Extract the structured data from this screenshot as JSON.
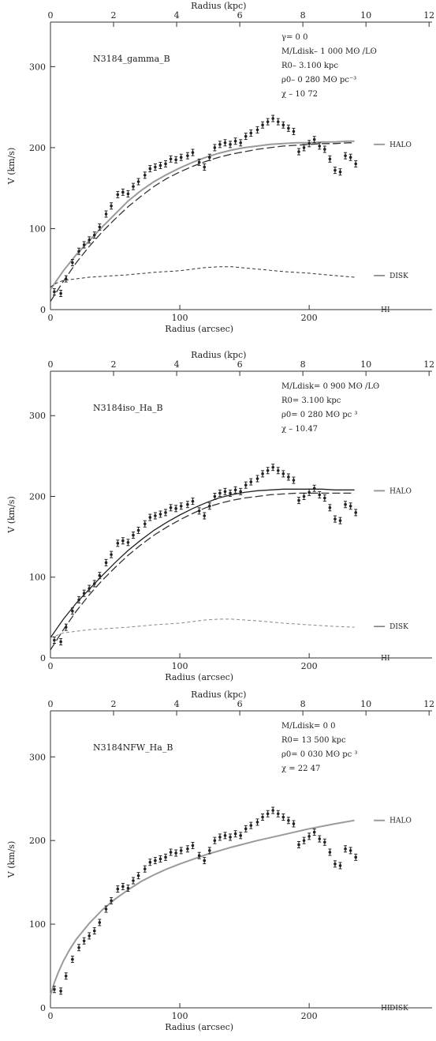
{
  "chart_data": [
    {
      "type": "line",
      "top_axis_label": "Radius (kpc)",
      "top_ticks": [
        "0",
        "2",
        "4",
        "6",
        "8",
        "10",
        "12"
      ],
      "xlabel": "Radius (arcsec)",
      "ylabel": "V (km/s)",
      "x_ticks": [
        "0",
        "100",
        "200"
      ],
      "y_ticks": [
        "0",
        "100",
        "200",
        "300"
      ],
      "xlim": [
        0,
        295
      ],
      "ylim": [
        0,
        355
      ],
      "model_name": "N3184_gamma_B",
      "params": [
        "γ= 0 0",
        "M/Ldisk– 1 000 Mʘ /Lʘ",
        "R0– 3.100 kpc",
        "ρ0– 0 280 Mʘ pc⁻³",
        "χ – 10 72"
      ],
      "legend": {
        "halo": "HALO",
        "disk": "DISK",
        "hi": "HI"
      },
      "legend_y": {
        "halo": 204,
        "disk": 42,
        "hi": 0
      },
      "series": [
        {
          "key": "total",
          "style": "solid-gray",
          "x": [
            0,
            10,
            20,
            30,
            40,
            50,
            60,
            70,
            80,
            90,
            100,
            110,
            120,
            130,
            140,
            150,
            160,
            170,
            180,
            190,
            200,
            210,
            220,
            230,
            235
          ],
          "y": [
            25,
            48,
            68,
            85,
            102,
            118,
            134,
            147,
            158,
            167,
            175,
            182,
            188,
            193,
            197,
            200,
            202,
            204,
            205,
            206,
            206,
            207,
            207,
            208,
            208
          ]
        },
        {
          "key": "halo",
          "style": "long-dash",
          "x": [
            0,
            10,
            20,
            30,
            40,
            50,
            60,
            70,
            80,
            90,
            100,
            110,
            120,
            130,
            140,
            150,
            160,
            170,
            180,
            190,
            200,
            210,
            220,
            230,
            235
          ],
          "y": [
            10,
            35,
            58,
            78,
            96,
            112,
            127,
            140,
            152,
            162,
            170,
            177,
            183,
            188,
            192,
            195,
            198,
            200,
            202,
            203,
            204,
            205,
            205,
            206,
            206
          ]
        },
        {
          "key": "disk",
          "style": "short-dash",
          "x": [
            0,
            5,
            10,
            20,
            30,
            40,
            60,
            80,
            100,
            120,
            130,
            140,
            160,
            180,
            200,
            220,
            235
          ],
          "y": [
            28,
            33,
            36,
            38,
            40,
            41,
            43,
            46,
            48,
            52,
            53,
            53,
            50,
            47,
            45,
            42,
            40
          ]
        }
      ],
      "points": {
        "x": [
          3,
          8,
          12,
          17,
          22,
          26,
          30,
          34,
          38,
          43,
          47,
          52,
          56,
          60,
          64,
          68,
          73,
          77,
          81,
          85,
          89,
          93,
          97,
          101,
          106,
          110,
          115,
          119,
          123,
          127,
          131,
          135,
          139,
          143,
          147,
          151,
          155,
          160,
          164,
          168,
          172,
          176,
          180,
          184,
          188,
          192,
          196,
          200,
          204,
          208,
          212,
          216,
          220,
          224,
          228,
          232,
          236
        ],
        "y": [
          22,
          20,
          38,
          58,
          72,
          80,
          86,
          92,
          102,
          118,
          128,
          142,
          145,
          143,
          152,
          158,
          166,
          174,
          176,
          178,
          180,
          186,
          185,
          188,
          190,
          194,
          182,
          176,
          188,
          200,
          204,
          206,
          204,
          208,
          206,
          214,
          218,
          222,
          228,
          232,
          236,
          232,
          228,
          224,
          220,
          195,
          200,
          205,
          210,
          202,
          198,
          186,
          172,
          170,
          190,
          188,
          180
        ]
      }
    },
    {
      "type": "line",
      "top_axis_label": "Radius (kpc)",
      "top_ticks": [
        "0",
        "2",
        "4",
        "6",
        "8",
        "10",
        "12"
      ],
      "xlabel": "Radius (arcsec)",
      "ylabel": "V (km/s)",
      "x_ticks": [
        "0",
        "100",
        "200"
      ],
      "y_ticks": [
        "0",
        "100",
        "200",
        "300"
      ],
      "xlim": [
        0,
        295
      ],
      "ylim": [
        0,
        355
      ],
      "model_name": "N3184iso_Ha_B",
      "params": [
        "M/Ldisk= 0 900 Mʘ /Lʘ",
        "R0= 3.100 kpc",
        "ρ0= 0 280 Mʘ pc ³",
        "χ – 10.47"
      ],
      "legend": {
        "halo": "HALO",
        "disk": "DISK",
        "hi": "HI"
      },
      "legend_y": {
        "halo": 207,
        "disk": 39,
        "hi": 0
      },
      "series": [
        {
          "key": "total",
          "style": "solid-black",
          "x": [
            0,
            10,
            20,
            30,
            40,
            50,
            60,
            70,
            80,
            90,
            100,
            110,
            120,
            130,
            140,
            150,
            160,
            170,
            180,
            190,
            200,
            210,
            220,
            230,
            235
          ],
          "y": [
            25,
            48,
            68,
            85,
            102,
            118,
            133,
            146,
            158,
            168,
            177,
            185,
            192,
            198,
            202,
            205,
            207,
            208,
            209,
            209,
            209,
            209,
            208,
            208,
            208
          ]
        },
        {
          "key": "halo",
          "style": "long-dash",
          "x": [
            0,
            10,
            20,
            30,
            40,
            50,
            60,
            70,
            80,
            90,
            100,
            110,
            120,
            130,
            140,
            150,
            160,
            170,
            180,
            190,
            200,
            210,
            220,
            230,
            235
          ],
          "y": [
            10,
            35,
            58,
            78,
            96,
            112,
            127,
            140,
            152,
            162,
            171,
            179,
            186,
            191,
            195,
            198,
            200,
            202,
            203,
            204,
            204,
            204,
            204,
            204,
            204
          ]
        },
        {
          "key": "disk",
          "style": "short-dash-gray",
          "x": [
            0,
            5,
            10,
            20,
            30,
            40,
            60,
            80,
            100,
            120,
            130,
            140,
            160,
            180,
            200,
            220,
            235
          ],
          "y": [
            25,
            28,
            31,
            33,
            35,
            36,
            38,
            41,
            43,
            47,
            48,
            48,
            46,
            43,
            41,
            39,
            38
          ]
        }
      ],
      "points": {
        "x": [
          3,
          8,
          12,
          17,
          22,
          26,
          30,
          34,
          38,
          43,
          47,
          52,
          56,
          60,
          64,
          68,
          73,
          77,
          81,
          85,
          89,
          93,
          97,
          101,
          106,
          110,
          115,
          119,
          123,
          127,
          131,
          135,
          139,
          143,
          147,
          151,
          155,
          160,
          164,
          168,
          172,
          176,
          180,
          184,
          188,
          192,
          196,
          200,
          204,
          208,
          212,
          216,
          220,
          224,
          228,
          232,
          236
        ],
        "y": [
          22,
          20,
          38,
          58,
          72,
          80,
          86,
          92,
          102,
          118,
          128,
          142,
          145,
          143,
          152,
          158,
          166,
          174,
          176,
          178,
          180,
          186,
          185,
          188,
          190,
          194,
          182,
          176,
          188,
          200,
          204,
          206,
          204,
          208,
          206,
          214,
          218,
          222,
          228,
          232,
          236,
          232,
          228,
          224,
          220,
          195,
          200,
          205,
          210,
          202,
          198,
          186,
          172,
          170,
          190,
          188,
          180
        ]
      }
    },
    {
      "type": "line",
      "top_axis_label": "Radius (kpc)",
      "top_ticks": [
        "0",
        "2",
        "4",
        "6",
        "8",
        "10",
        "12"
      ],
      "xlabel": "Radius (arcsec)",
      "ylabel": "V (km/s)",
      "x_ticks": [
        "0",
        "100",
        "200"
      ],
      "y_ticks": [
        "0",
        "100",
        "200",
        "300"
      ],
      "xlim": [
        0,
        295
      ],
      "ylim": [
        0,
        355
      ],
      "model_name": "N3184NFW_Ha_B",
      "params": [
        "M/Ldisk= 0 0",
        "R0= 13 500 kpc",
        "ρ0= 0 030 Mʘ pc ³",
        "χ = 22 47"
      ],
      "legend": {
        "halo": "HALO",
        "disk": "DISK",
        "hi": "HI"
      },
      "legend_y": {
        "halo": 224,
        "disk": 0,
        "hi": 0
      },
      "series": [
        {
          "key": "halo",
          "style": "solid-gray",
          "x": [
            0,
            3,
            6,
            10,
            15,
            20,
            30,
            40,
            50,
            60,
            70,
            80,
            90,
            100,
            120,
            140,
            160,
            180,
            200,
            220,
            235
          ],
          "y": [
            15,
            30,
            42,
            56,
            70,
            82,
            101,
            117,
            130,
            141,
            151,
            159,
            166,
            172,
            183,
            192,
            200,
            207,
            214,
            220,
            224
          ]
        }
      ],
      "points": {
        "x": [
          3,
          8,
          12,
          17,
          22,
          26,
          30,
          34,
          38,
          43,
          47,
          52,
          56,
          60,
          64,
          68,
          73,
          77,
          81,
          85,
          89,
          93,
          97,
          101,
          106,
          110,
          115,
          119,
          123,
          127,
          131,
          135,
          139,
          143,
          147,
          151,
          155,
          160,
          164,
          168,
          172,
          176,
          180,
          184,
          188,
          192,
          196,
          200,
          204,
          208,
          212,
          216,
          220,
          224,
          228,
          232,
          236
        ],
        "y": [
          22,
          20,
          38,
          58,
          72,
          80,
          86,
          92,
          102,
          118,
          128,
          142,
          145,
          143,
          152,
          158,
          166,
          174,
          176,
          178,
          180,
          186,
          185,
          188,
          190,
          194,
          182,
          176,
          188,
          200,
          204,
          206,
          204,
          208,
          206,
          214,
          218,
          222,
          228,
          232,
          236,
          232,
          228,
          224,
          220,
          195,
          200,
          205,
          210,
          202,
          198,
          186,
          172,
          170,
          190,
          188,
          180
        ]
      }
    }
  ]
}
